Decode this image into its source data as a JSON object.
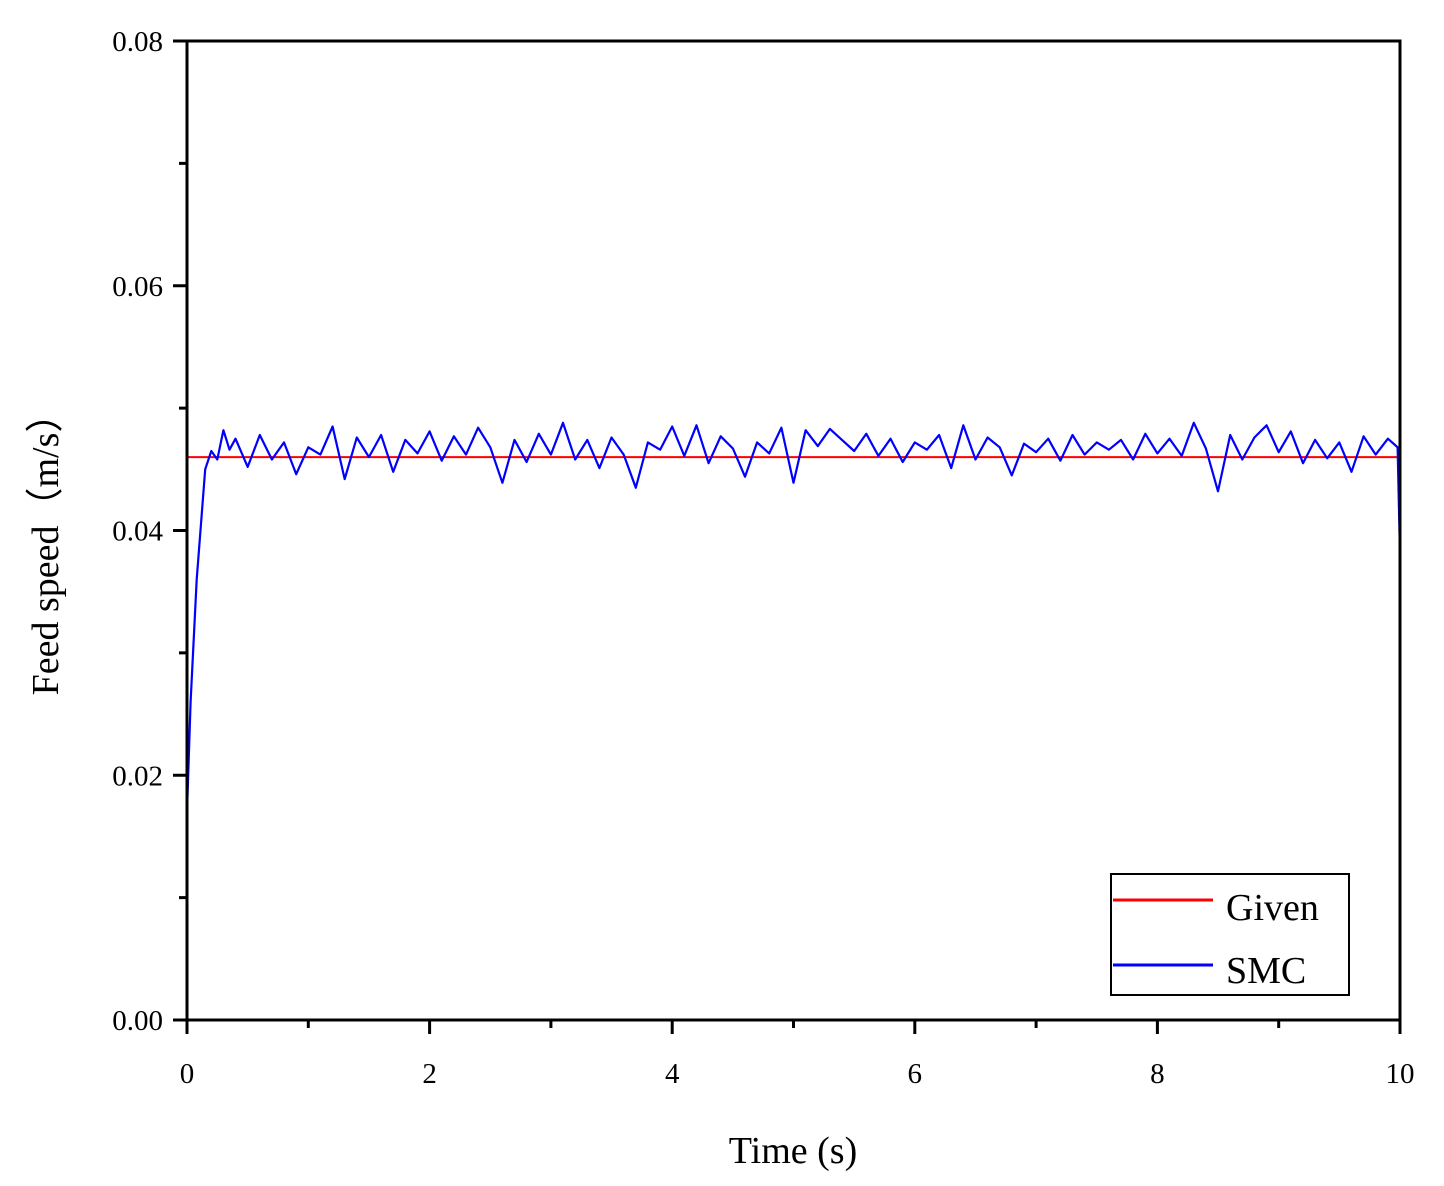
{
  "chart_data": {
    "type": "line",
    "title": "",
    "xlabel": "Time (s)",
    "ylabel": "Feed speed（m/s）",
    "xlim": [
      0,
      10
    ],
    "ylim": [
      0,
      0.08
    ],
    "x_ticks": [
      "0",
      "2",
      "4",
      "6",
      "8",
      "10"
    ],
    "y_ticks": [
      "0.00",
      "0.02",
      "0.04",
      "0.06",
      "0.08"
    ],
    "x_minor_step": 1,
    "y_minor_step": 0.01,
    "grid": false,
    "legend_position": "bottom-right",
    "series": [
      {
        "name": "Given",
        "color": "#ff0000",
        "x": [
          0,
          10
        ],
        "y": [
          0.046,
          0.046
        ]
      },
      {
        "name": "SMC",
        "color": "#0000ff",
        "x": [
          0.0,
          0.03,
          0.08,
          0.15,
          0.2,
          0.25,
          0.3,
          0.35,
          0.4,
          0.5,
          0.6,
          0.7,
          0.8,
          0.9,
          1.0,
          1.1,
          1.2,
          1.3,
          1.4,
          1.5,
          1.6,
          1.7,
          1.8,
          1.9,
          2.0,
          2.1,
          2.2,
          2.3,
          2.4,
          2.5,
          2.6,
          2.7,
          2.8,
          2.9,
          3.0,
          3.1,
          3.2,
          3.3,
          3.4,
          3.5,
          3.6,
          3.7,
          3.8,
          3.9,
          4.0,
          4.1,
          4.2,
          4.3,
          4.4,
          4.5,
          4.6,
          4.7,
          4.8,
          4.9,
          5.0,
          5.1,
          5.2,
          5.3,
          5.4,
          5.5,
          5.6,
          5.7,
          5.8,
          5.9,
          6.0,
          6.1,
          6.2,
          6.3,
          6.4,
          6.5,
          6.6,
          6.7,
          6.8,
          6.9,
          7.0,
          7.1,
          7.2,
          7.3,
          7.4,
          7.5,
          7.6,
          7.7,
          7.8,
          7.9,
          8.0,
          8.1,
          8.2,
          8.3,
          8.4,
          8.5,
          8.6,
          8.7,
          8.8,
          8.9,
          9.0,
          9.1,
          9.2,
          9.3,
          9.4,
          9.5,
          9.6,
          9.7,
          9.8,
          9.9,
          9.98,
          10.0
        ],
        "y": [
          0.017,
          0.026,
          0.036,
          0.045,
          0.0465,
          0.0458,
          0.0482,
          0.0466,
          0.0475,
          0.0452,
          0.0478,
          0.0458,
          0.0472,
          0.0446,
          0.0468,
          0.0462,
          0.0485,
          0.0442,
          0.0476,
          0.046,
          0.0478,
          0.0448,
          0.0474,
          0.0463,
          0.0481,
          0.0457,
          0.0477,
          0.0462,
          0.0484,
          0.0468,
          0.0439,
          0.0474,
          0.0456,
          0.0479,
          0.0462,
          0.0488,
          0.0458,
          0.0474,
          0.0451,
          0.0476,
          0.0462,
          0.0435,
          0.0472,
          0.0466,
          0.0485,
          0.0461,
          0.0486,
          0.0455,
          0.0477,
          0.0467,
          0.0444,
          0.0472,
          0.0463,
          0.0484,
          0.0439,
          0.0482,
          0.0469,
          0.0483,
          0.0474,
          0.0465,
          0.0479,
          0.0461,
          0.0475,
          0.0456,
          0.0472,
          0.0466,
          0.0478,
          0.0451,
          0.0486,
          0.0458,
          0.0476,
          0.0468,
          0.0445,
          0.0471,
          0.0464,
          0.0475,
          0.0457,
          0.0478,
          0.0462,
          0.0472,
          0.0466,
          0.0474,
          0.0458,
          0.0479,
          0.0463,
          0.0475,
          0.0461,
          0.0488,
          0.0467,
          0.0432,
          0.0478,
          0.0458,
          0.0476,
          0.0486,
          0.0464,
          0.0481,
          0.0455,
          0.0474,
          0.0459,
          0.0472,
          0.0448,
          0.0477,
          0.0462,
          0.0475,
          0.0468,
          0.038
        ]
      }
    ]
  }
}
